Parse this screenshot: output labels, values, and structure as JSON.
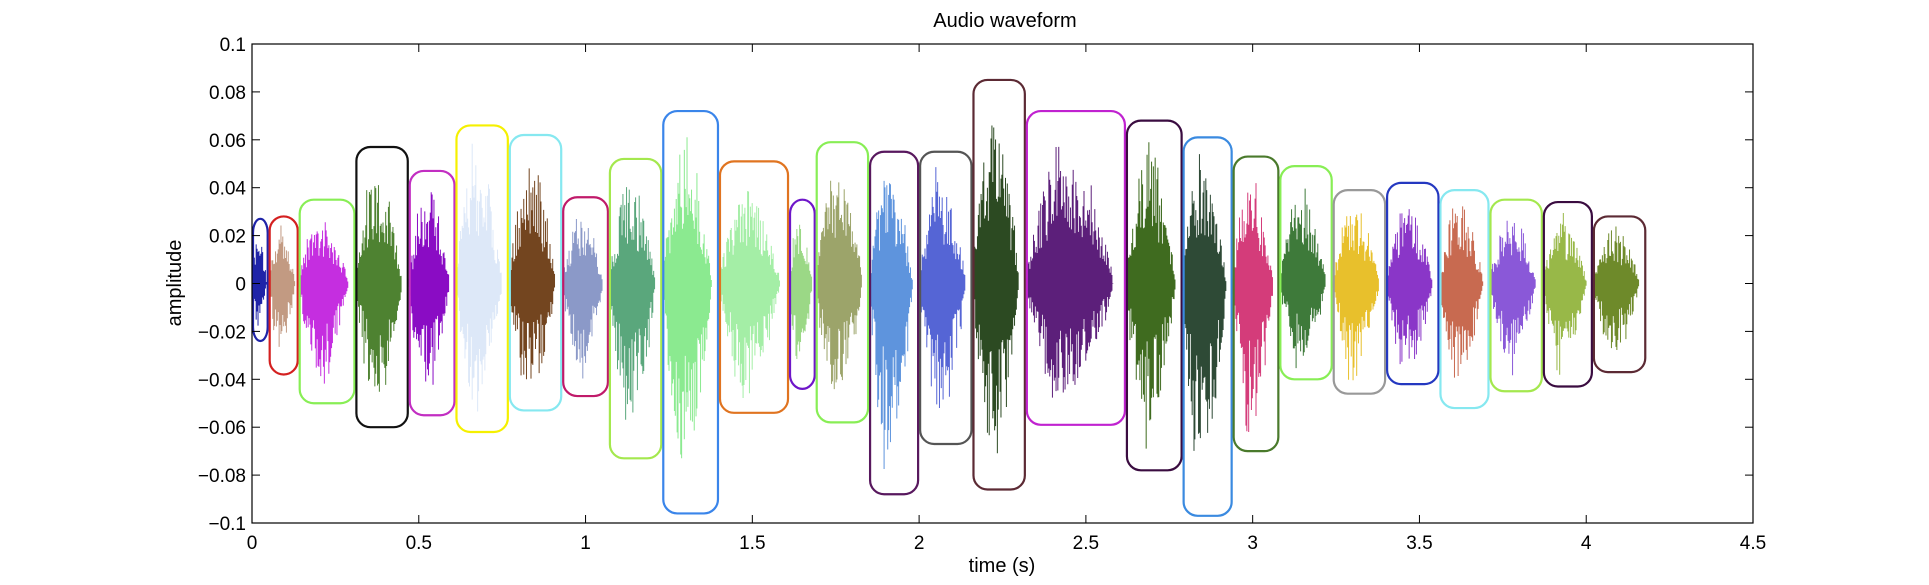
{
  "chart_data": {
    "type": "line",
    "title": "Audio waveform",
    "xlabel": "time (s)",
    "ylabel": "amplitude",
    "xlim": [
      0,
      4.5
    ],
    "ylim": [
      -0.1,
      0.1
    ],
    "grid": false,
    "legend": "none",
    "x_ticks": [
      "0",
      "0.5",
      "1",
      "1.5",
      "2",
      "2.5",
      "3",
      "3.5",
      "4",
      "4.5"
    ],
    "y_ticks": [
      "−0.1",
      "−0.08",
      "−0.06",
      "−0.04",
      "−0.02",
      "0",
      "0.02",
      "0.04",
      "0.06",
      "0.08",
      "0.1"
    ],
    "segments": [
      {
        "start": 0.0,
        "end": 0.05,
        "max": 0.027,
        "min": -0.024,
        "color": "#1f24a8",
        "box_color": "#1f24a8"
      },
      {
        "start": 0.05,
        "end": 0.14,
        "max": 0.028,
        "min": -0.038,
        "color": "#c29a82",
        "box_color": "#d42020"
      },
      {
        "start": 0.14,
        "end": 0.31,
        "max": 0.035,
        "min": -0.05,
        "color": "#c52ee0",
        "box_color": "#88ee55"
      },
      {
        "start": 0.31,
        "end": 0.47,
        "max": 0.057,
        "min": -0.06,
        "color": "#4e8231",
        "box_color": "#111111"
      },
      {
        "start": 0.47,
        "end": 0.61,
        "max": 0.047,
        "min": -0.055,
        "color": "#8a0cc4",
        "box_color": "#c22ec2"
      },
      {
        "start": 0.61,
        "end": 0.77,
        "max": 0.066,
        "min": -0.062,
        "color": "#dde8f8",
        "box_color": "#f5f000"
      },
      {
        "start": 0.77,
        "end": 0.93,
        "max": 0.062,
        "min": -0.053,
        "color": "#73451f",
        "box_color": "#86e8f0"
      },
      {
        "start": 0.93,
        "end": 1.07,
        "max": 0.036,
        "min": -0.047,
        "color": "#8b99c8",
        "box_color": "#c01a6a"
      },
      {
        "start": 1.07,
        "end": 1.23,
        "max": 0.052,
        "min": -0.073,
        "color": "#5aa77c",
        "box_color": "#a4e84e"
      },
      {
        "start": 1.23,
        "end": 1.4,
        "max": 0.072,
        "min": -0.096,
        "color": "#8bea90",
        "box_color": "#3a85ea"
      },
      {
        "start": 1.4,
        "end": 1.61,
        "max": 0.051,
        "min": -0.054,
        "color": "#a4eea6",
        "box_color": "#e07420"
      },
      {
        "start": 1.61,
        "end": 1.69,
        "max": 0.035,
        "min": -0.044,
        "color": "#9bd886",
        "box_color": "#6e16c9"
      },
      {
        "start": 1.69,
        "end": 1.85,
        "max": 0.059,
        "min": -0.058,
        "color": "#9ca46a",
        "box_color": "#88ee55"
      },
      {
        "start": 1.85,
        "end": 2.0,
        "max": 0.055,
        "min": -0.088,
        "color": "#5e94dd",
        "box_color": "#58185e"
      },
      {
        "start": 2.0,
        "end": 2.16,
        "max": 0.055,
        "min": -0.067,
        "color": "#5565d5",
        "box_color": "#555555"
      },
      {
        "start": 2.16,
        "end": 2.32,
        "max": 0.085,
        "min": -0.086,
        "color": "#2c4a22",
        "box_color": "#5c2a34"
      },
      {
        "start": 2.32,
        "end": 2.62,
        "max": 0.072,
        "min": -0.059,
        "color": "#5c1f7a",
        "box_color": "#c022d0"
      },
      {
        "start": 2.62,
        "end": 2.79,
        "max": 0.068,
        "min": -0.078,
        "color": "#3f6b1f",
        "box_color": "#3a0c40"
      },
      {
        "start": 2.79,
        "end": 2.94,
        "max": 0.061,
        "min": -0.097,
        "color": "#2e4a36",
        "box_color": "#3a8ae0"
      },
      {
        "start": 2.94,
        "end": 3.08,
        "max": 0.053,
        "min": -0.07,
        "color": "#d43c7a",
        "box_color": "#4a7a2c"
      },
      {
        "start": 3.08,
        "end": 3.24,
        "max": 0.049,
        "min": -0.04,
        "color": "#3e7a3a",
        "box_color": "#88ee55"
      },
      {
        "start": 3.24,
        "end": 3.4,
        "max": 0.039,
        "min": -0.046,
        "color": "#e8c02c",
        "box_color": "#999999"
      },
      {
        "start": 3.4,
        "end": 3.56,
        "max": 0.042,
        "min": -0.042,
        "color": "#8a36c8",
        "box_color": "#2438c0"
      },
      {
        "start": 3.56,
        "end": 3.71,
        "max": 0.039,
        "min": -0.052,
        "color": "#c86a50",
        "box_color": "#86e8f0"
      },
      {
        "start": 3.71,
        "end": 3.87,
        "max": 0.035,
        "min": -0.045,
        "color": "#8a58d8",
        "box_color": "#a4e84e"
      },
      {
        "start": 3.87,
        "end": 4.02,
        "max": 0.034,
        "min": -0.043,
        "color": "#98b848",
        "box_color": "#3a0c40"
      },
      {
        "start": 4.02,
        "end": 4.18,
        "max": 0.028,
        "min": -0.037,
        "color": "#6e8a2a",
        "box_color": "#5c2a34"
      }
    ]
  }
}
